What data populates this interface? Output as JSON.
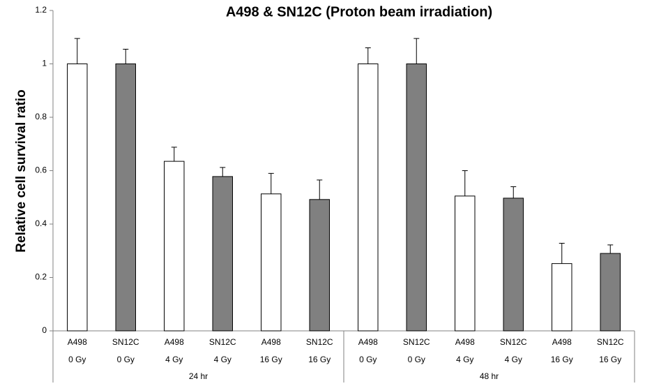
{
  "chart_data": {
    "type": "bar",
    "title": "A498 & SN12C (Proton beam irradiation)",
    "y_label": "Relative cell survival ratio",
    "categories": [
      "A498",
      "SN12C",
      "A498",
      "SN12C",
      "A498",
      "SN12C",
      "A498",
      "SN12C",
      "A498",
      "SN12C",
      "A498",
      "SN12C"
    ],
    "doses": [
      "0 Gy",
      "0 Gy",
      "4 Gy",
      "4 Gy",
      "16 Gy",
      "16 Gy",
      "0 Gy",
      "0 Gy",
      "4 Gy",
      "4 Gy",
      "16 Gy",
      "16 Gy"
    ],
    "groups": [
      "24 hr",
      "48 hr"
    ],
    "values": [
      1.0,
      1.0,
      0.635,
      0.578,
      0.513,
      0.492,
      1.0,
      1.0,
      0.505,
      0.497,
      0.252,
      0.29
    ],
    "errors": [
      0.095,
      0.055,
      0.053,
      0.034,
      0.077,
      0.073,
      0.06,
      0.095,
      0.095,
      0.043,
      0.076,
      0.032
    ],
    "colors": [
      "#ffffff",
      "#808080",
      "#ffffff",
      "#808080",
      "#ffffff",
      "#808080",
      "#ffffff",
      "#808080",
      "#ffffff",
      "#808080",
      "#ffffff",
      "#808080"
    ],
    "ylim": [
      0,
      1.2
    ],
    "yticks": [
      0,
      0.2,
      0.4,
      0.6,
      0.8,
      1,
      1.2
    ],
    "grid": false
  }
}
